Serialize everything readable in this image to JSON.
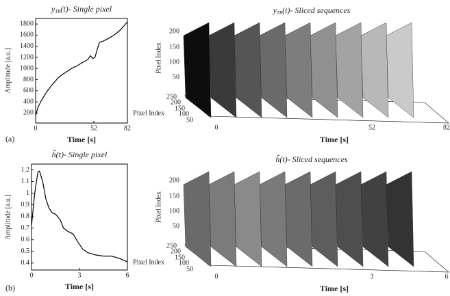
{
  "chart_data": [
    {
      "type": "line",
      "title_var": "y",
      "title_sub": "TR",
      "title_rest": "(t)- Single pixel",
      "xlabel": "Time [s]",
      "ylabel": "Amplitude [a.u.]",
      "xlim": [
        0,
        82
      ],
      "xticks": [
        0,
        52,
        82
      ],
      "ylim": [
        20,
        1900
      ],
      "yticks": [
        200,
        400,
        600,
        800,
        1000,
        1200,
        1400,
        1600,
        1800
      ],
      "color": "#000000",
      "x": [
        0,
        2,
        5,
        8,
        11,
        14,
        17,
        20,
        23,
        26,
        29,
        32,
        35,
        38,
        41,
        44,
        47,
        49,
        51,
        53,
        55,
        57,
        60,
        65,
        70,
        75,
        80,
        82
      ],
      "values": [
        150,
        300,
        420,
        520,
        610,
        690,
        760,
        830,
        880,
        920,
        960,
        1000,
        1030,
        1060,
        1100,
        1130,
        1170,
        1230,
        1180,
        1200,
        1340,
        1470,
        1490,
        1540,
        1600,
        1680,
        1790,
        1840
      ]
    },
    {
      "type": "line",
      "title_var": "h̃",
      "title_sub": "",
      "title_rest": "(t)- Single pixel",
      "xlabel": "Time [s]",
      "ylabel": "Amplitude [a.u.]",
      "xlim": [
        0,
        6
      ],
      "xticks": [
        0,
        3,
        6
      ],
      "ylim": [
        0.34,
        1.25
      ],
      "yticks": [
        0.4,
        0.5,
        0.6,
        0.7,
        0.8,
        0.9,
        1,
        1.1,
        1.2
      ],
      "color": "#000000",
      "x": [
        0,
        0.2,
        0.4,
        0.5,
        0.7,
        0.9,
        1.1,
        1.3,
        1.5,
        1.8,
        2.0,
        2.3,
        2.6,
        2.9,
        3.2,
        3.5,
        4.0,
        4.5,
        5.0,
        5.5,
        6.0
      ],
      "values": [
        0.72,
        1.0,
        1.18,
        1.19,
        1.1,
        0.95,
        0.87,
        0.83,
        0.82,
        0.77,
        0.7,
        0.67,
        0.65,
        0.58,
        0.52,
        0.49,
        0.47,
        0.46,
        0.46,
        0.44,
        0.41
      ]
    }
  ],
  "panels": [
    {
      "label": "(a)",
      "title_var": "y",
      "title_sub": "TR",
      "title_rest": "(t)- Sliced sequences",
      "y_label": "Pixel Index",
      "y_ticks": [
        "200",
        "150",
        "100",
        "50"
      ],
      "depth_label": "Pixel Index",
      "depth_ticks": [
        "250",
        "200",
        "150",
        "100",
        "50"
      ],
      "time_label": "Time [s]",
      "time_ticks": [
        "0",
        "52",
        "82"
      ]
    },
    {
      "label": "(b)",
      "title_var": "h̃",
      "title_sub": "",
      "title_rest": "(t)- Sliced sequences",
      "y_label": "Pixel Index",
      "y_ticks": [
        "200",
        "150",
        "100",
        "50"
      ],
      "depth_label": "Pixel Index",
      "depth_ticks": [
        "250",
        "200",
        "150",
        "100",
        "50"
      ],
      "time_label": "Time [s]",
      "time_ticks": [
        "0",
        "3",
        "6"
      ]
    }
  ]
}
